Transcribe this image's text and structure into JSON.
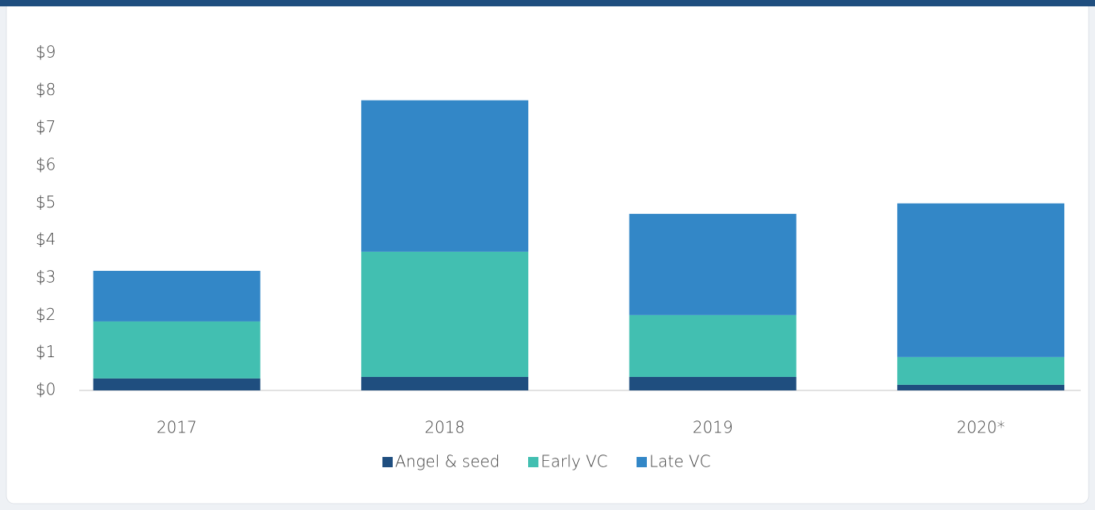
{
  "chart_data": {
    "type": "stacked_bar",
    "categories": [
      "2017",
      "2018",
      "2019",
      "2020*"
    ],
    "series": [
      {
        "name": "Angel & seed",
        "color": "#1f4e7f",
        "values": [
          0.32,
          0.36,
          0.36,
          0.15
        ]
      },
      {
        "name": "Early VC",
        "color": "#42bfb1",
        "values": [
          1.52,
          3.34,
          1.65,
          0.74
        ]
      },
      {
        "name": "Late VC",
        "color": "#3387c7",
        "values": [
          1.35,
          4.04,
          2.7,
          4.1
        ]
      }
    ],
    "ylim": [
      0,
      9
    ],
    "yticks": [
      {
        "value": 0,
        "label": "$0"
      },
      {
        "value": 1,
        "label": "$1"
      },
      {
        "value": 2,
        "label": "$2"
      },
      {
        "value": 3,
        "label": "$3"
      },
      {
        "value": 4,
        "label": "$4"
      },
      {
        "value": 5,
        "label": "$5"
      },
      {
        "value": 6,
        "label": "$6"
      },
      {
        "value": 7,
        "label": "$7"
      },
      {
        "value": 8,
        "label": "$8"
      },
      {
        "value": 9,
        "label": "$9"
      }
    ],
    "grid": false,
    "legend": "bottom"
  }
}
